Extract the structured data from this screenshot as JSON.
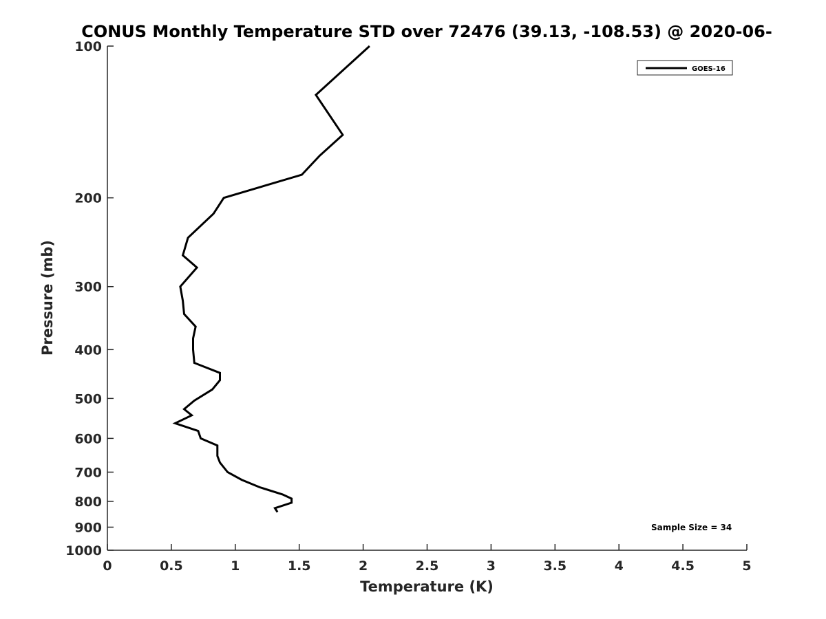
{
  "chart_data": {
    "type": "line",
    "title": "CONUS Monthly Temperature STD over 72476 (39.13, -108.53) @ 2020-06-",
    "xlabel": "Temperature (K)",
    "ylabel": "Pressure (mb)",
    "xlim": [
      0,
      5
    ],
    "ylim": [
      1000,
      100
    ],
    "yscale": "log",
    "y_reversed": true,
    "x_ticks": [
      "0",
      "0.5",
      "1",
      "1.5",
      "2",
      "2.5",
      "3",
      "3.5",
      "4",
      "4.5",
      "5"
    ],
    "y_ticks": [
      "100",
      "200",
      "300",
      "400",
      "500",
      "600",
      "700",
      "800",
      "900",
      "1000"
    ],
    "grid": false,
    "legend_position": "top-right",
    "series": [
      {
        "name": "GOES-16",
        "color": "#000000",
        "points": [
          {
            "x": 2.05,
            "y": 100
          },
          {
            "x": 1.63,
            "y": 125
          },
          {
            "x": 1.84,
            "y": 150
          },
          {
            "x": 1.66,
            "y": 165
          },
          {
            "x": 1.52,
            "y": 180
          },
          {
            "x": 0.91,
            "y": 200
          },
          {
            "x": 0.83,
            "y": 215
          },
          {
            "x": 0.63,
            "y": 240
          },
          {
            "x": 0.59,
            "y": 260
          },
          {
            "x": 0.7,
            "y": 275
          },
          {
            "x": 0.57,
            "y": 300
          },
          {
            "x": 0.59,
            "y": 320
          },
          {
            "x": 0.6,
            "y": 340
          },
          {
            "x": 0.69,
            "y": 360
          },
          {
            "x": 0.67,
            "y": 380
          },
          {
            "x": 0.67,
            "y": 400
          },
          {
            "x": 0.68,
            "y": 425
          },
          {
            "x": 0.88,
            "y": 445
          },
          {
            "x": 0.88,
            "y": 460
          },
          {
            "x": 0.82,
            "y": 480
          },
          {
            "x": 0.68,
            "y": 505
          },
          {
            "x": 0.6,
            "y": 525
          },
          {
            "x": 0.66,
            "y": 540
          },
          {
            "x": 0.53,
            "y": 560
          },
          {
            "x": 0.71,
            "y": 580
          },
          {
            "x": 0.73,
            "y": 600
          },
          {
            "x": 0.86,
            "y": 620
          },
          {
            "x": 0.86,
            "y": 650
          },
          {
            "x": 0.88,
            "y": 670
          },
          {
            "x": 0.94,
            "y": 700
          },
          {
            "x": 1.05,
            "y": 725
          },
          {
            "x": 1.19,
            "y": 750
          },
          {
            "x": 1.37,
            "y": 775
          },
          {
            "x": 1.44,
            "y": 790
          },
          {
            "x": 1.44,
            "y": 805
          },
          {
            "x": 1.31,
            "y": 825
          },
          {
            "x": 1.33,
            "y": 840
          }
        ]
      }
    ],
    "annotation": "Sample Size = 34"
  }
}
